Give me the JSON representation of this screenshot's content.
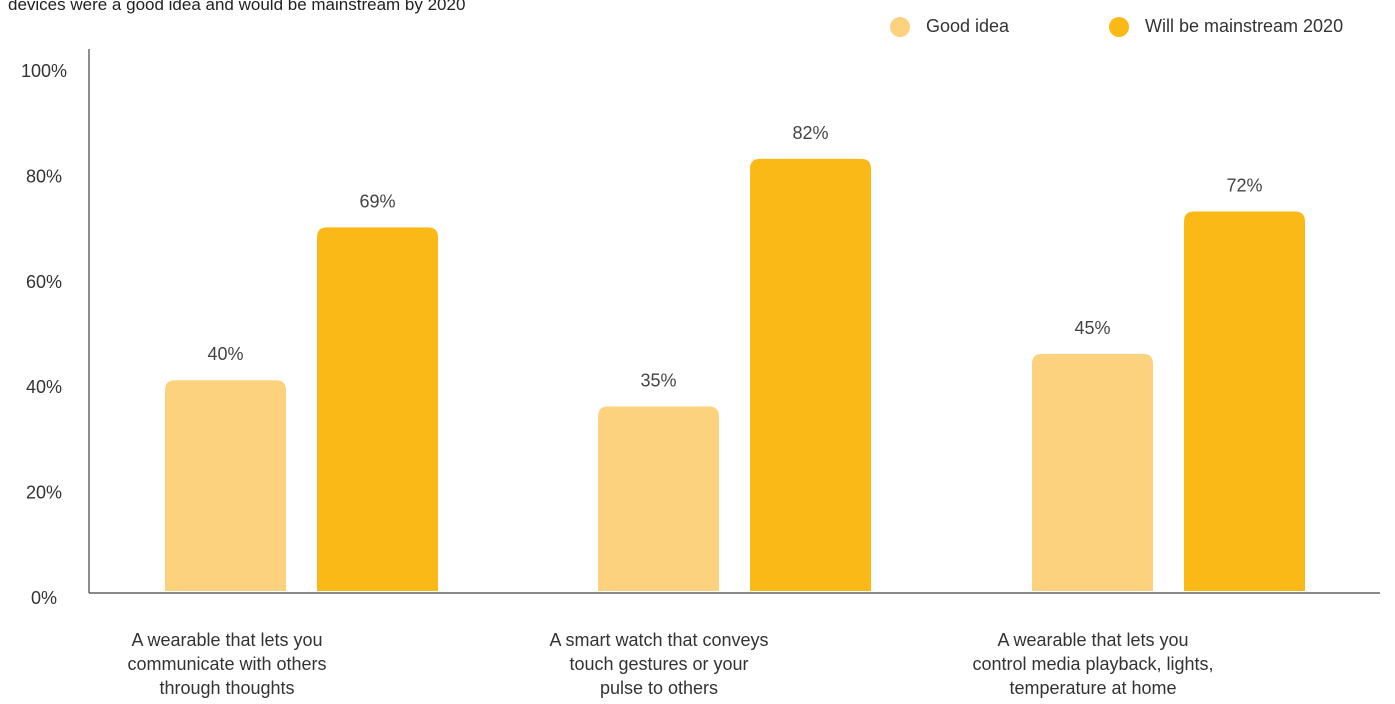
{
  "chart_data": {
    "type": "bar",
    "title_lines": [
      "",
      "devices were a good idea and would be mainstream by 2020"
    ],
    "categories": [
      [
        "A wearable that lets you",
        "communicate with others",
        "through thoughts"
      ],
      [
        "A smart watch that conveys",
        "touch gestures or your",
        "pulse to others"
      ],
      [
        "A wearable that lets you",
        "control media playback, lights,",
        "temperature at home"
      ]
    ],
    "series": [
      {
        "name": "Good idea",
        "color": "#fdd27f",
        "values": [
          40,
          35,
          45
        ],
        "labels": [
          "40%",
          "35%",
          "45%"
        ]
      },
      {
        "name": "Will be mainstream 2020",
        "color": "#fbb917",
        "values": [
          69,
          82,
          72
        ],
        "labels": [
          "69%",
          "82%",
          "72%"
        ]
      }
    ],
    "yticks": [
      "0%",
      "20%",
      "40%",
      "60%",
      "80%",
      "100%"
    ],
    "ylim": [
      0,
      100
    ],
    "legend_position": "top-right",
    "grid": false
  }
}
